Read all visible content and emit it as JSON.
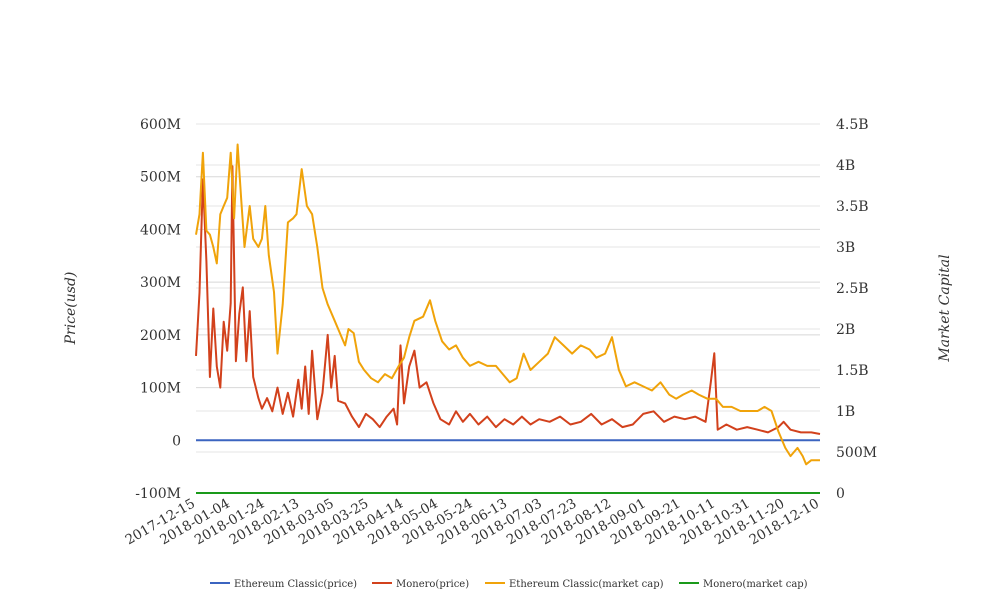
{
  "chart_data": {
    "type": "line",
    "title": "",
    "ylabel_left": "Price(usd)",
    "ylabel_right": "Market Capital",
    "y_left_ticks": [
      "-100M",
      "0",
      "100M",
      "200M",
      "300M",
      "400M",
      "500M",
      "600M"
    ],
    "y_left_range": [
      -100000000,
      600000000
    ],
    "y_right_ticks": [
      "0",
      "500M",
      "1B",
      "1.5B",
      "2B",
      "2.5B",
      "3B",
      "3.5B",
      "4B",
      "4.5B"
    ],
    "y_right_range": [
      0,
      4500000000
    ],
    "x_ticks": [
      "2017-12-15",
      "2018-01-04",
      "2018-01-24",
      "2018-02-13",
      "2018-03-05",
      "2018-03-25",
      "2018-04-14",
      "2018-05-04",
      "2018-05-24",
      "2018-06-13",
      "2018-07-03",
      "2018-07-23",
      "2018-08-12",
      "2018-09-01",
      "2018-09-21",
      "2018-10-11",
      "2018-10-31",
      "2018-11-20",
      "2018-12-10"
    ],
    "grid": true,
    "legend_position": "bottom",
    "series": [
      {
        "name": "Ethereum Classic(price)",
        "axis": "left",
        "color": "#3b64c0",
        "points": [
          [
            "2017-12-15",
            0
          ],
          [
            "2018-12-10",
            0
          ]
        ]
      },
      {
        "name": "Monero(price)",
        "axis": "left",
        "color": "#d2411c",
        "points": [
          [
            "2017-12-15",
            160000000
          ],
          [
            "2017-12-17",
            280000000
          ],
          [
            "2017-12-19",
            495000000
          ],
          [
            "2017-12-21",
            340000000
          ],
          [
            "2017-12-23",
            120000000
          ],
          [
            "2017-12-25",
            250000000
          ],
          [
            "2017-12-27",
            140000000
          ],
          [
            "2017-12-29",
            100000000
          ],
          [
            "2017-12-31",
            225000000
          ],
          [
            "2018-01-02",
            170000000
          ],
          [
            "2018-01-04",
            260000000
          ],
          [
            "2018-01-05",
            520000000
          ],
          [
            "2018-01-07",
            150000000
          ],
          [
            "2018-01-09",
            240000000
          ],
          [
            "2018-01-11",
            290000000
          ],
          [
            "2018-01-13",
            150000000
          ],
          [
            "2018-01-15",
            245000000
          ],
          [
            "2018-01-17",
            120000000
          ],
          [
            "2018-01-20",
            80000000
          ],
          [
            "2018-01-22",
            60000000
          ],
          [
            "2018-01-25",
            80000000
          ],
          [
            "2018-01-28",
            55000000
          ],
          [
            "2018-01-31",
            100000000
          ],
          [
            "2018-02-03",
            50000000
          ],
          [
            "2018-02-06",
            90000000
          ],
          [
            "2018-02-09",
            45000000
          ],
          [
            "2018-02-12",
            115000000
          ],
          [
            "2018-02-14",
            60000000
          ],
          [
            "2018-02-16",
            140000000
          ],
          [
            "2018-02-18",
            50000000
          ],
          [
            "2018-02-20",
            170000000
          ],
          [
            "2018-02-23",
            40000000
          ],
          [
            "2018-02-26",
            90000000
          ],
          [
            "2018-03-01",
            200000000
          ],
          [
            "2018-03-03",
            100000000
          ],
          [
            "2018-03-05",
            160000000
          ],
          [
            "2018-03-07",
            75000000
          ],
          [
            "2018-03-11",
            70000000
          ],
          [
            "2018-03-15",
            45000000
          ],
          [
            "2018-03-19",
            25000000
          ],
          [
            "2018-03-23",
            50000000
          ],
          [
            "2018-03-27",
            40000000
          ],
          [
            "2018-03-31",
            25000000
          ],
          [
            "2018-04-04",
            45000000
          ],
          [
            "2018-04-08",
            60000000
          ],
          [
            "2018-04-10",
            30000000
          ],
          [
            "2018-04-12",
            180000000
          ],
          [
            "2018-04-14",
            70000000
          ],
          [
            "2018-04-17",
            140000000
          ],
          [
            "2018-04-20",
            170000000
          ],
          [
            "2018-04-23",
            100000000
          ],
          [
            "2018-04-27",
            110000000
          ],
          [
            "2018-05-01",
            70000000
          ],
          [
            "2018-05-05",
            40000000
          ],
          [
            "2018-05-10",
            30000000
          ],
          [
            "2018-05-14",
            55000000
          ],
          [
            "2018-05-18",
            35000000
          ],
          [
            "2018-05-22",
            50000000
          ],
          [
            "2018-05-27",
            30000000
          ],
          [
            "2018-06-01",
            45000000
          ],
          [
            "2018-06-06",
            25000000
          ],
          [
            "2018-06-11",
            40000000
          ],
          [
            "2018-06-16",
            30000000
          ],
          [
            "2018-06-21",
            45000000
          ],
          [
            "2018-06-26",
            30000000
          ],
          [
            "2018-07-01",
            40000000
          ],
          [
            "2018-07-07",
            35000000
          ],
          [
            "2018-07-13",
            45000000
          ],
          [
            "2018-07-19",
            30000000
          ],
          [
            "2018-07-25",
            35000000
          ],
          [
            "2018-07-31",
            50000000
          ],
          [
            "2018-08-06",
            30000000
          ],
          [
            "2018-08-12",
            40000000
          ],
          [
            "2018-08-18",
            25000000
          ],
          [
            "2018-08-24",
            30000000
          ],
          [
            "2018-08-30",
            50000000
          ],
          [
            "2018-09-05",
            55000000
          ],
          [
            "2018-09-11",
            35000000
          ],
          [
            "2018-09-17",
            45000000
          ],
          [
            "2018-09-23",
            40000000
          ],
          [
            "2018-09-29",
            45000000
          ],
          [
            "2018-10-05",
            35000000
          ],
          [
            "2018-10-08",
            110000000
          ],
          [
            "2018-10-10",
            165000000
          ],
          [
            "2018-10-12",
            20000000
          ],
          [
            "2018-10-17",
            30000000
          ],
          [
            "2018-10-23",
            20000000
          ],
          [
            "2018-10-29",
            25000000
          ],
          [
            "2018-11-04",
            20000000
          ],
          [
            "2018-11-10",
            15000000
          ],
          [
            "2018-11-16",
            25000000
          ],
          [
            "2018-11-19",
            35000000
          ],
          [
            "2018-11-23",
            20000000
          ],
          [
            "2018-11-29",
            15000000
          ],
          [
            "2018-12-05",
            15000000
          ],
          [
            "2018-12-10",
            12000000
          ]
        ]
      },
      {
        "name": "Ethereum Classic(market cap)",
        "axis": "right",
        "color": "#f0a30a",
        "points": [
          [
            "2017-12-15",
            3150000000
          ],
          [
            "2017-12-17",
            3400000000
          ],
          [
            "2017-12-19",
            4150000000
          ],
          [
            "2017-12-21",
            3200000000
          ],
          [
            "2017-12-23",
            3150000000
          ],
          [
            "2017-12-25",
            3000000000
          ],
          [
            "2017-12-27",
            2800000000
          ],
          [
            "2017-12-29",
            3400000000
          ],
          [
            "2017-12-31",
            3500000000
          ],
          [
            "2018-01-02",
            3600000000
          ],
          [
            "2018-01-04",
            4150000000
          ],
          [
            "2018-01-06",
            3350000000
          ],
          [
            "2018-01-08",
            4250000000
          ],
          [
            "2018-01-10",
            3600000000
          ],
          [
            "2018-01-12",
            3000000000
          ],
          [
            "2018-01-15",
            3500000000
          ],
          [
            "2018-01-17",
            3100000000
          ],
          [
            "2018-01-20",
            3000000000
          ],
          [
            "2018-01-22",
            3100000000
          ],
          [
            "2018-01-24",
            3500000000
          ],
          [
            "2018-01-26",
            2900000000
          ],
          [
            "2018-01-29",
            2450000000
          ],
          [
            "2018-01-31",
            1700000000
          ],
          [
            "2018-02-03",
            2300000000
          ],
          [
            "2018-02-06",
            3300000000
          ],
          [
            "2018-02-09",
            3350000000
          ],
          [
            "2018-02-11",
            3400000000
          ],
          [
            "2018-02-14",
            3950000000
          ],
          [
            "2018-02-17",
            3500000000
          ],
          [
            "2018-02-20",
            3400000000
          ],
          [
            "2018-02-23",
            3000000000
          ],
          [
            "2018-02-26",
            2500000000
          ],
          [
            "2018-03-01",
            2300000000
          ],
          [
            "2018-03-05",
            2100000000
          ],
          [
            "2018-03-08",
            1950000000
          ],
          [
            "2018-03-11",
            1800000000
          ],
          [
            "2018-03-13",
            2000000000
          ],
          [
            "2018-03-16",
            1950000000
          ],
          [
            "2018-03-19",
            1600000000
          ],
          [
            "2018-03-22",
            1500000000
          ],
          [
            "2018-03-26",
            1400000000
          ],
          [
            "2018-03-30",
            1350000000
          ],
          [
            "2018-04-03",
            1450000000
          ],
          [
            "2018-04-07",
            1400000000
          ],
          [
            "2018-04-11",
            1550000000
          ],
          [
            "2018-04-14",
            1650000000
          ],
          [
            "2018-04-17",
            1900000000
          ],
          [
            "2018-04-20",
            2100000000
          ],
          [
            "2018-04-25",
            2150000000
          ],
          [
            "2018-04-29",
            2350000000
          ],
          [
            "2018-05-02",
            2100000000
          ],
          [
            "2018-05-06",
            1850000000
          ],
          [
            "2018-05-10",
            1750000000
          ],
          [
            "2018-05-14",
            1800000000
          ],
          [
            "2018-05-18",
            1650000000
          ],
          [
            "2018-05-22",
            1550000000
          ],
          [
            "2018-05-27",
            1600000000
          ],
          [
            "2018-06-01",
            1550000000
          ],
          [
            "2018-06-06",
            1550000000
          ],
          [
            "2018-06-10",
            1450000000
          ],
          [
            "2018-06-14",
            1350000000
          ],
          [
            "2018-06-18",
            1400000000
          ],
          [
            "2018-06-22",
            1700000000
          ],
          [
            "2018-06-26",
            1500000000
          ],
          [
            "2018-07-01",
            1600000000
          ],
          [
            "2018-07-06",
            1700000000
          ],
          [
            "2018-07-10",
            1900000000
          ],
          [
            "2018-07-15",
            1800000000
          ],
          [
            "2018-07-20",
            1700000000
          ],
          [
            "2018-07-25",
            1800000000
          ],
          [
            "2018-07-30",
            1750000000
          ],
          [
            "2018-08-03",
            1650000000
          ],
          [
            "2018-08-08",
            1700000000
          ],
          [
            "2018-08-12",
            1900000000
          ],
          [
            "2018-08-16",
            1500000000
          ],
          [
            "2018-08-20",
            1300000000
          ],
          [
            "2018-08-25",
            1350000000
          ],
          [
            "2018-08-30",
            1300000000
          ],
          [
            "2018-09-04",
            1250000000
          ],
          [
            "2018-09-09",
            1350000000
          ],
          [
            "2018-09-14",
            1200000000
          ],
          [
            "2018-09-18",
            1150000000
          ],
          [
            "2018-09-22",
            1200000000
          ],
          [
            "2018-09-27",
            1250000000
          ],
          [
            "2018-10-01",
            1200000000
          ],
          [
            "2018-10-06",
            1150000000
          ],
          [
            "2018-10-11",
            1150000000
          ],
          [
            "2018-10-15",
            1050000000
          ],
          [
            "2018-10-20",
            1050000000
          ],
          [
            "2018-10-25",
            1000000000
          ],
          [
            "2018-10-30",
            1000000000
          ],
          [
            "2018-11-04",
            1000000000
          ],
          [
            "2018-11-08",
            1050000000
          ],
          [
            "2018-11-12",
            1000000000
          ],
          [
            "2018-11-16",
            750000000
          ],
          [
            "2018-11-20",
            550000000
          ],
          [
            "2018-11-23",
            450000000
          ],
          [
            "2018-11-27",
            550000000
          ],
          [
            "2018-11-30",
            450000000
          ],
          [
            "2018-12-02",
            350000000
          ],
          [
            "2018-12-05",
            400000000
          ],
          [
            "2018-12-10",
            400000000
          ]
        ]
      },
      {
        "name": "Monero(market cap)",
        "axis": "right",
        "color": "#1a9a1a",
        "points": [
          [
            "2017-12-15",
            0
          ],
          [
            "2018-12-10",
            0
          ]
        ]
      }
    ]
  }
}
